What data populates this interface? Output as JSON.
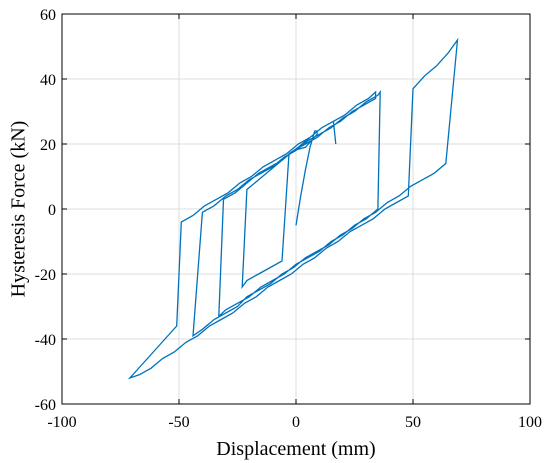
{
  "chart_data": {
    "type": "line",
    "title": "",
    "xlabel": "Displacement (mm)",
    "ylabel": "Hysteresis Force (kN)",
    "xlim": [
      -100,
      100
    ],
    "ylim": [
      -60,
      60
    ],
    "xticks": [
      -100,
      -50,
      0,
      50,
      100
    ],
    "yticks": [
      -60,
      -40,
      -20,
      0,
      20,
      40,
      60
    ],
    "xtick_labels": [
      "-100",
      "-50",
      "0",
      "50",
      "100"
    ],
    "ytick_labels": [
      "-60",
      "-40",
      "-20",
      "0",
      "20",
      "40",
      "60"
    ],
    "grid": true,
    "series_color": "#0072bd",
    "series": [
      {
        "x": [
          0,
          2,
          4,
          6,
          8,
          9,
          9,
          4,
          -1,
          -6,
          -11,
          -16,
          -21,
          -23,
          -21,
          -16,
          -11,
          -6,
          -3,
          -3,
          1,
          6,
          11,
          16,
          21,
          26,
          31,
          34,
          34,
          29,
          24,
          19,
          14,
          9,
          4,
          -1,
          -6,
          -11,
          -16,
          -21,
          -26,
          -31,
          -33,
          -30,
          -25,
          -20,
          -15,
          -10,
          -5,
          0,
          5,
          10,
          15,
          20,
          25,
          30,
          35,
          36,
          35,
          30,
          25,
          20,
          15,
          10,
          5,
          0,
          -5,
          -10,
          -15,
          -20,
          -25,
          -30,
          -35,
          -40,
          -44,
          -40,
          -35,
          -30,
          -25,
          -21,
          -16,
          -11,
          -6,
          -1,
          4,
          9,
          14,
          19,
          24,
          29,
          34,
          39,
          44,
          49,
          54,
          59,
          64,
          69,
          65,
          60,
          55,
          50,
          48,
          43,
          38,
          33,
          28,
          23,
          18,
          13,
          8,
          3,
          -2,
          -7,
          -12,
          -17,
          -22,
          -27,
          -32,
          -37,
          -42,
          -47,
          -52,
          -57,
          -62,
          -67,
          -71,
          -66,
          -61,
          -56,
          -51,
          -49,
          -44,
          -39,
          -34,
          -29,
          -24,
          -19,
          -14,
          -9,
          -4,
          1,
          6,
          11,
          16,
          17
        ],
        "y": [
          -5,
          4,
          12,
          19,
          24,
          24,
          23,
          19,
          18,
          15,
          12,
          9,
          6,
          -24,
          -22,
          -20,
          -18,
          -16,
          17,
          17,
          19,
          22,
          25,
          27,
          29,
          32,
          34,
          36,
          34,
          32,
          30,
          27,
          25,
          22,
          20,
          18,
          15,
          13,
          11,
          8,
          5,
          3,
          -33,
          -31,
          -29,
          -27,
          -24,
          -22,
          -20,
          -17,
          -15,
          -13,
          -10,
          -8,
          -5,
          -3,
          0,
          36,
          35,
          33,
          30,
          28,
          25,
          23,
          21,
          18,
          16,
          13,
          11,
          9,
          6,
          4,
          1,
          -1,
          -39,
          -37,
          -34,
          -32,
          -30,
          -27,
          -25,
          -23,
          -20,
          -18,
          -15,
          -13,
          -11,
          -8,
          -6,
          -3,
          -1,
          2,
          4,
          7,
          9,
          11,
          14,
          52,
          48,
          44,
          41,
          37,
          4,
          2,
          0,
          -3,
          -5,
          -7,
          -10,
          -12,
          -15,
          -17,
          -20,
          -22,
          -24,
          -27,
          -29,
          -32,
          -34,
          -36,
          -39,
          -41,
          -44,
          -46,
          -49,
          -51,
          -52,
          -48,
          -44,
          -40,
          -36,
          -4,
          -2,
          1,
          3,
          5,
          8,
          10,
          13,
          15,
          17,
          20,
          22,
          25,
          27,
          20
        ]
      }
    ]
  }
}
